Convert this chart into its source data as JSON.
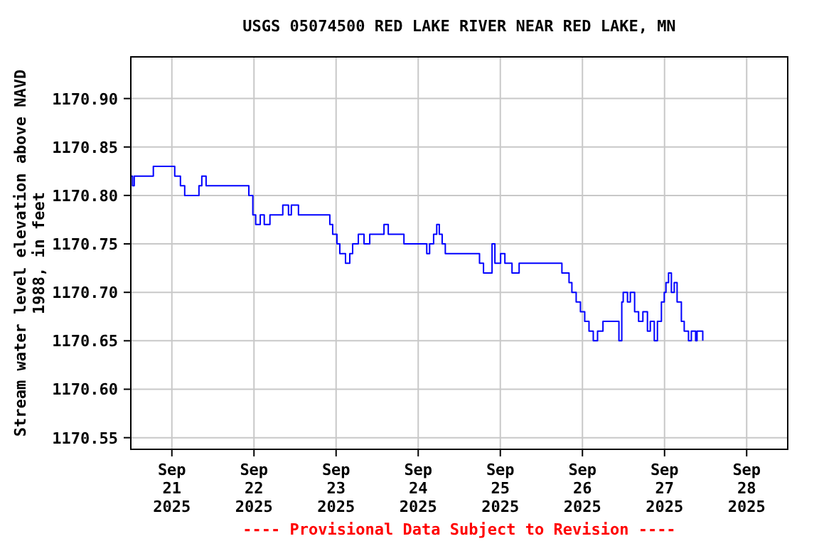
{
  "chart_data": {
    "type": "step",
    "title": "USGS 05074500 RED LAKE RIVER NEAR RED LAKE, MN",
    "ylabel": "Stream water level elevation above NAVD\n1988, in feet",
    "annotations": [
      "---- Provisional Data Subject to Revision ----"
    ],
    "xlim": [
      "2025-09-20T12:00",
      "2025-09-28T12:00"
    ],
    "xticks": [
      {
        "value": "2025-09-21",
        "label": "Sep\n21\n2025"
      },
      {
        "value": "2025-09-22",
        "label": "Sep\n22\n2025"
      },
      {
        "value": "2025-09-23",
        "label": "Sep\n23\n2025"
      },
      {
        "value": "2025-09-24",
        "label": "Sep\n24\n2025"
      },
      {
        "value": "2025-09-25",
        "label": "Sep\n25\n2025"
      },
      {
        "value": "2025-09-26",
        "label": "Sep\n26\n2025"
      },
      {
        "value": "2025-09-27",
        "label": "Sep\n27\n2025"
      },
      {
        "value": "2025-09-28",
        "label": "Sep\n28\n2025"
      }
    ],
    "ylim": [
      1170.538,
      1170.943
    ],
    "yticks": [
      {
        "value": 1170.55,
        "label": "1170.55"
      },
      {
        "value": 1170.6,
        "label": "1170.60"
      },
      {
        "value": 1170.65,
        "label": "1170.65"
      },
      {
        "value": 1170.7,
        "label": "1170.70"
      },
      {
        "value": 1170.75,
        "label": "1170.75"
      },
      {
        "value": 1170.8,
        "label": "1170.80"
      },
      {
        "value": 1170.85,
        "label": "1170.85"
      },
      {
        "value": 1170.9,
        "label": "1170.90"
      }
    ],
    "grid": true,
    "line_style": "solid",
    "series": [
      {
        "color": "#0000ff",
        "x": [
          "2025-09-20T12:00",
          "2025-09-20T12:30",
          "2025-09-20T13:00",
          "2025-09-20T18:35",
          "2025-09-21T00:50",
          "2025-09-21T01:15",
          "2025-09-21T02:30",
          "2025-09-21T03:45",
          "2025-09-21T07:55",
          "2025-09-21T08:45",
          "2025-09-21T10:00",
          "2025-09-21T22:00",
          "2025-09-21T22:30",
          "2025-09-21T23:40",
          "2025-09-22T00:30",
          "2025-09-22T01:50",
          "2025-09-22T03:00",
          "2025-09-22T04:40",
          "2025-09-22T08:25",
          "2025-09-22T10:05",
          "2025-09-22T10:55",
          "2025-09-22T13:00",
          "2025-09-22T22:10",
          "2025-09-22T23:00",
          "2025-09-23T00:15",
          "2025-09-23T01:05",
          "2025-09-23T02:45",
          "2025-09-23T04:00",
          "2025-09-23T04:50",
          "2025-09-23T06:30",
          "2025-09-23T08:10",
          "2025-09-23T09:50",
          "2025-09-23T14:00",
          "2025-09-23T15:15",
          "2025-09-23T19:50",
          "2025-09-24T01:10",
          "2025-09-24T02:30",
          "2025-09-24T03:20",
          "2025-09-24T04:30",
          "2025-09-24T05:25",
          "2025-09-24T06:10",
          "2025-09-24T07:00",
          "2025-09-24T07:55",
          "2025-09-24T10:50",
          "2025-09-24T17:55",
          "2025-09-24T19:05",
          "2025-09-24T21:35",
          "2025-09-24T22:25",
          "2025-09-25T00:05",
          "2025-09-25T01:20",
          "2025-09-25T03:25",
          "2025-09-25T05:30",
          "2025-09-25T15:55",
          "2025-09-25T18:00",
          "2025-09-25T20:05",
          "2025-09-25T20:55",
          "2025-09-25T22:10",
          "2025-09-25T23:25",
          "2025-09-26T00:40",
          "2025-09-26T01:55",
          "2025-09-26T03:10",
          "2025-09-26T04:25",
          "2025-09-26T06:00",
          "2025-09-26T09:00",
          "2025-09-26T10:40",
          "2025-09-26T11:30",
          "2025-09-26T11:55",
          "2025-09-26T13:10",
          "2025-09-26T14:00",
          "2025-09-26T15:15",
          "2025-09-26T16:25",
          "2025-09-26T17:40",
          "2025-09-26T19:00",
          "2025-09-26T19:50",
          "2025-09-26T21:00",
          "2025-09-26T21:55",
          "2025-09-26T23:05",
          "2025-09-26T23:55",
          "2025-09-27T00:25",
          "2025-09-27T01:10",
          "2025-09-27T02:00",
          "2025-09-27T02:50",
          "2025-09-27T03:40",
          "2025-09-27T04:55",
          "2025-09-27T05:45",
          "2025-09-27T07:00",
          "2025-09-27T07:50",
          "2025-09-27T09:05",
          "2025-09-27T09:30",
          "2025-09-27T11:10"
        ],
        "values": [
          1170.82,
          1170.81,
          1170.82,
          1170.83,
          1170.82,
          1170.82,
          1170.81,
          1170.8,
          1170.81,
          1170.82,
          1170.81,
          1170.81,
          1170.8,
          1170.78,
          1170.77,
          1170.78,
          1170.77,
          1170.78,
          1170.79,
          1170.78,
          1170.79,
          1170.78,
          1170.77,
          1170.76,
          1170.75,
          1170.74,
          1170.73,
          1170.74,
          1170.75,
          1170.76,
          1170.75,
          1170.76,
          1170.77,
          1170.76,
          1170.75,
          1170.75,
          1170.74,
          1170.75,
          1170.76,
          1170.77,
          1170.76,
          1170.75,
          1170.74,
          1170.74,
          1170.73,
          1170.72,
          1170.75,
          1170.73,
          1170.74,
          1170.73,
          1170.72,
          1170.73,
          1170.73,
          1170.72,
          1170.71,
          1170.7,
          1170.69,
          1170.68,
          1170.67,
          1170.66,
          1170.65,
          1170.66,
          1170.67,
          1170.67,
          1170.65,
          1170.69,
          1170.7,
          1170.69,
          1170.7,
          1170.68,
          1170.67,
          1170.68,
          1170.66,
          1170.67,
          1170.65,
          1170.67,
          1170.69,
          1170.7,
          1170.71,
          1170.72,
          1170.7,
          1170.71,
          1170.69,
          1170.67,
          1170.66,
          1170.65,
          1170.66,
          1170.65,
          1170.66,
          1170.65
        ]
      }
    ]
  }
}
